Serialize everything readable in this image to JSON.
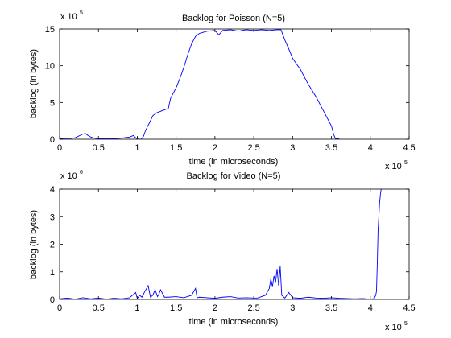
{
  "chart_data": [
    {
      "type": "line",
      "title": "Backlog for Poisson (N=5)",
      "xlabel": "time (in microseconds)",
      "ylabel": "backlog (in bytes)",
      "xlim": [
        0,
        450000
      ],
      "ylim": [
        0,
        1500000
      ],
      "xticks": [
        0,
        50000,
        100000,
        150000,
        200000,
        250000,
        300000,
        350000,
        400000,
        450000
      ],
      "xtick_labels": [
        "0",
        "0.5",
        "1",
        "1.5",
        "2",
        "2.5",
        "3",
        "3.5",
        "4",
        "4.5"
      ],
      "yticks": [
        0,
        500000,
        1000000,
        1500000
      ],
      "ytick_labels": [
        "0",
        "5",
        "10",
        "15"
      ],
      "x_exponent": {
        "base": "x 10",
        "power": "5"
      },
      "y_exponent": {
        "base": "x 10",
        "power": "5"
      },
      "grid": false,
      "line_color": "#0000ff",
      "series": [
        {
          "x": [
            0,
            15000,
            20000,
            25000,
            30000,
            33000,
            36000,
            40000,
            45000,
            50000,
            60000,
            70000,
            80000,
            90000,
            95000,
            98000,
            100000,
            102000,
            105000,
            108000,
            110000,
            113000,
            116000,
            120000,
            125000,
            130000,
            135000,
            140000,
            143000,
            146000,
            150000,
            155000,
            160000,
            165000,
            170000,
            175000,
            180000,
            190000,
            200000,
            205000,
            210000,
            220000,
            230000,
            240000,
            250000,
            260000,
            270000,
            280000,
            285000,
            290000,
            295000,
            300000,
            310000,
            320000,
            330000,
            340000,
            345000,
            350000,
            353000,
            355000,
            360000
          ],
          "y": [
            10000,
            12000,
            20000,
            45000,
            70000,
            80000,
            55000,
            30000,
            15000,
            8000,
            10000,
            8000,
            15000,
            30000,
            50000,
            20000,
            5000,
            2000,
            0,
            40000,
            100000,
            170000,
            230000,
            320000,
            360000,
            380000,
            400000,
            420000,
            560000,
            620000,
            700000,
            830000,
            980000,
            1150000,
            1300000,
            1400000,
            1440000,
            1470000,
            1480000,
            1420000,
            1480000,
            1490000,
            1470000,
            1490000,
            1480000,
            1490000,
            1480000,
            1490000,
            1490000,
            1350000,
            1230000,
            1100000,
            950000,
            750000,
            580000,
            380000,
            280000,
            180000,
            60000,
            10000,
            5000
          ]
        }
      ]
    },
    {
      "type": "line",
      "title": "Backlog for Video (N=5)",
      "xlabel": "time (in microseconds)",
      "ylabel": "backlog (in bytes)",
      "xlim": [
        0,
        450000
      ],
      "ylim": [
        0,
        4000000
      ],
      "xticks": [
        0,
        50000,
        100000,
        150000,
        200000,
        250000,
        300000,
        350000,
        400000,
        450000
      ],
      "xtick_labels": [
        "0",
        "0.5",
        "1",
        "1.5",
        "2",
        "2.5",
        "3",
        "3.5",
        "4",
        "4.5"
      ],
      "yticks": [
        0,
        1000000,
        2000000,
        3000000,
        4000000
      ],
      "ytick_labels": [
        "0",
        "1",
        "2",
        "3",
        "4"
      ],
      "x_exponent": {
        "base": "x 10",
        "power": "5"
      },
      "y_exponent": {
        "base": "x 10",
        "power": "6"
      },
      "grid": false,
      "line_color": "#0000ff",
      "series": [
        {
          "x": [
            0,
            10000,
            20000,
            30000,
            40000,
            50000,
            60000,
            70000,
            80000,
            90000,
            96000,
            98000,
            100000,
            103000,
            106000,
            110000,
            112000,
            114000,
            117000,
            120000,
            123000,
            126000,
            128000,
            130000,
            135000,
            140000,
            150000,
            160000,
            170000,
            175000,
            177000,
            180000,
            190000,
            200000,
            210000,
            220000,
            230000,
            240000,
            250000,
            255000,
            260000,
            265000,
            270000,
            272000,
            274000,
            276000,
            278000,
            280000,
            282000,
            284000,
            286000,
            290000,
            295000,
            300000,
            310000,
            320000,
            330000,
            340000,
            350000,
            360000,
            370000,
            380000,
            390000,
            400000,
            405000,
            407000,
            408000,
            409000,
            410000,
            411000,
            412000,
            413000,
            414000
          ],
          "y": [
            20000,
            50000,
            10000,
            60000,
            20000,
            50000,
            10000,
            40000,
            20000,
            60000,
            200000,
            250000,
            30000,
            150000,
            80000,
            300000,
            400000,
            500000,
            80000,
            150000,
            350000,
            100000,
            200000,
            350000,
            80000,
            80000,
            100000,
            60000,
            150000,
            400000,
            60000,
            80000,
            60000,
            40000,
            80000,
            100000,
            50000,
            60000,
            50000,
            50000,
            100000,
            150000,
            400000,
            750000,
            450000,
            850000,
            600000,
            1100000,
            500000,
            1200000,
            150000,
            50000,
            250000,
            60000,
            40000,
            80000,
            50000,
            40000,
            60000,
            40000,
            30000,
            20000,
            30000,
            10000,
            30000,
            150000,
            300000,
            1300000,
            2500000,
            3000000,
            3500000,
            3800000,
            4000000
          ]
        }
      ]
    }
  ]
}
